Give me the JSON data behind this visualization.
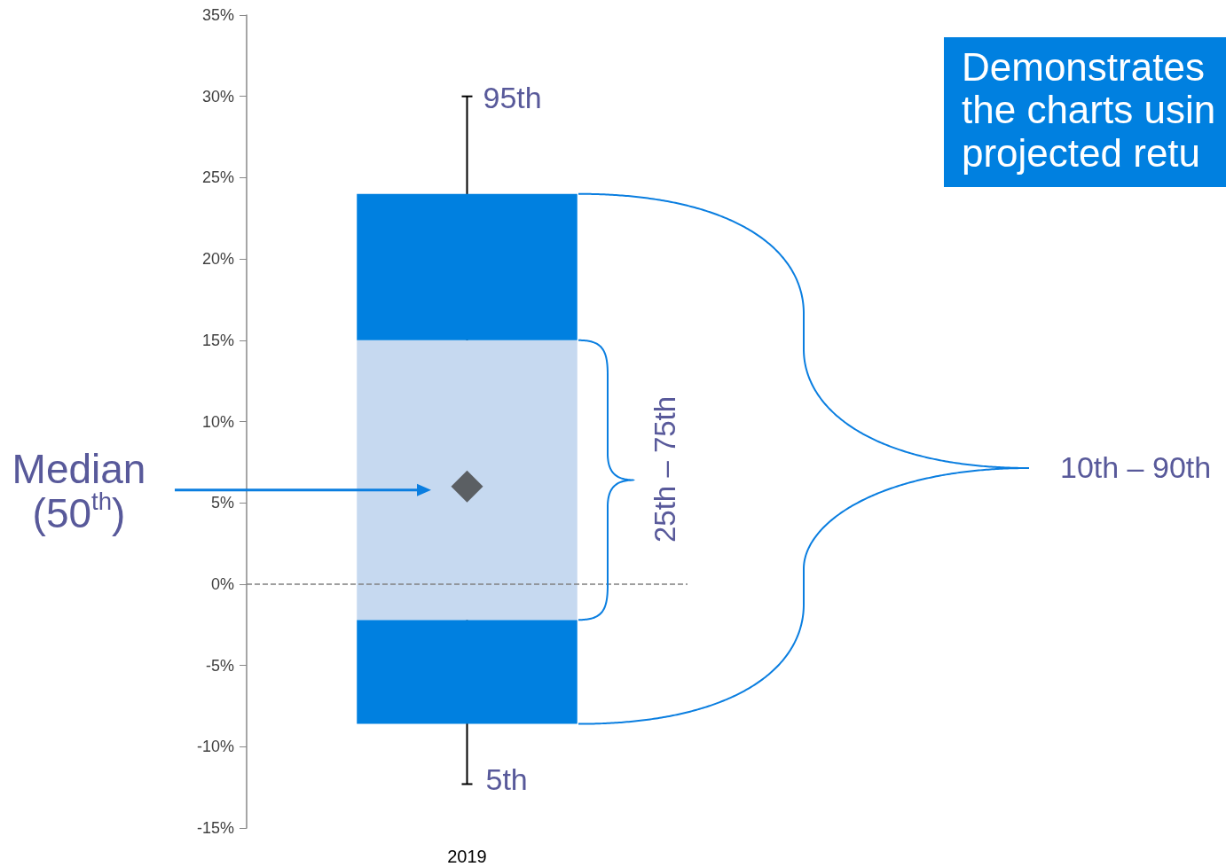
{
  "chart_data": {
    "type": "bar",
    "categories": [
      "2019"
    ],
    "series": [
      {
        "color": "#0080e0",
        "values": [
          6.4
        ],
        "base": [
          -8.6
        ]
      },
      {
        "color": "#c6d9f0",
        "values": [
          17.2
        ],
        "base": [
          -2.2
        ]
      },
      {
        "color": "#0080e0",
        "values": [
          9.0
        ],
        "base": [
          15
        ]
      },
      {
        "type": "scatter",
        "color": "#404040",
        "values": [
          6
        ],
        "errors": [
          [
            -12.3,
            30
          ]
        ]
      }
    ],
    "marker": "diamond",
    "ylim": [
      -15,
      35
    ],
    "yticks": [
      {
        "value": -15,
        "label": "-15%"
      },
      {
        "value": -10,
        "label": "-10%"
      },
      {
        "value": -5,
        "label": "-5%"
      },
      {
        "value": 0,
        "label": "0%"
      },
      {
        "value": 5,
        "label": "5%"
      },
      {
        "value": 10,
        "label": "10%"
      },
      {
        "value": 15,
        "label": "15%"
      },
      {
        "value": 20,
        "label": "20%"
      },
      {
        "value": 25,
        "label": "25%"
      },
      {
        "value": 30,
        "label": "30%"
      },
      {
        "value": 35,
        "label": "35%"
      }
    ],
    "ref_lines": [
      {
        "axis": "y",
        "value": 0,
        "line_style": "dashed",
        "color": "#808080"
      }
    ],
    "annotations": [
      "95th",
      "5th",
      "25th – 75th",
      "10th – 90th",
      "Median (50$^{th}$)",
      "Demonstrates\nthe charts usin\nprojected retu"
    ]
  }
}
